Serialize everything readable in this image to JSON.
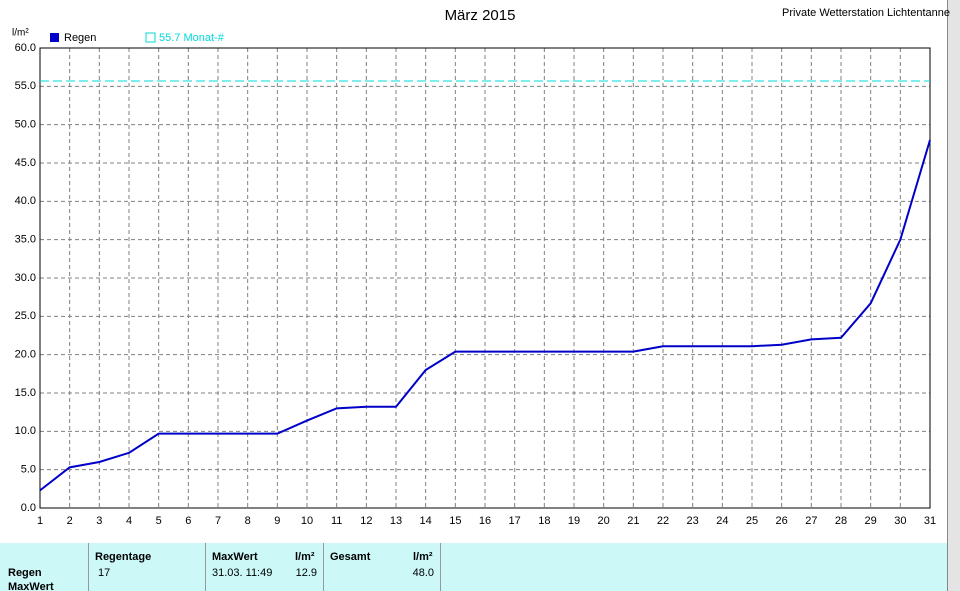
{
  "chart_data": {
    "type": "line",
    "title": "März 2015",
    "station": "Private Wetterstation Lichtentanne",
    "y_label": "l/m²",
    "x": [
      1,
      2,
      3,
      4,
      5,
      6,
      7,
      8,
      9,
      10,
      11,
      12,
      13,
      14,
      15,
      16,
      17,
      18,
      19,
      20,
      21,
      22,
      23,
      24,
      25,
      26,
      27,
      28,
      29,
      30,
      31
    ],
    "xlim": [
      1,
      31
    ],
    "xticks": [
      1,
      2,
      3,
      4,
      5,
      6,
      7,
      8,
      9,
      10,
      11,
      12,
      13,
      14,
      15,
      16,
      17,
      18,
      19,
      20,
      21,
      22,
      23,
      24,
      25,
      26,
      27,
      28,
      29,
      30,
      31
    ],
    "ylim": [
      0,
      60
    ],
    "yticks": [
      {
        "value": 0,
        "label": "0.0"
      },
      {
        "value": 5,
        "label": "5.0"
      },
      {
        "value": 10,
        "label": "10.0"
      },
      {
        "value": 15,
        "label": "15.0"
      },
      {
        "value": 20,
        "label": "20.0"
      },
      {
        "value": 25,
        "label": "25.0"
      },
      {
        "value": 30,
        "label": "30.0"
      },
      {
        "value": 35,
        "label": "35.0"
      },
      {
        "value": 40,
        "label": "40.0"
      },
      {
        "value": 45,
        "label": "45.0"
      },
      {
        "value": 50,
        "label": "50.0"
      },
      {
        "value": 55,
        "label": "55.0"
      },
      {
        "value": 60,
        "label": "60.0"
      }
    ],
    "grid": true,
    "series": [
      {
        "name": "Regen",
        "color": "#0000c8",
        "values": [
          2.3,
          5.3,
          6.0,
          7.2,
          9.7,
          9.7,
          9.7,
          9.7,
          9.7,
          11.4,
          13.0,
          13.2,
          13.2,
          18.0,
          20.4,
          20.4,
          20.4,
          20.4,
          20.4,
          20.4,
          20.4,
          21.1,
          21.1,
          21.1,
          21.1,
          21.3,
          22.0,
          22.2,
          26.7,
          35.0,
          48.0
        ]
      }
    ],
    "reference": {
      "value": 55.7,
      "label": "55.7 Monat-#",
      "color": "#00d8d8"
    }
  },
  "table": {
    "headers": [
      "Regentage",
      "MaxWert",
      "l/m²",
      "Gesamt",
      "l/m²"
    ],
    "row_labels": [
      "Regen",
      "MaxWert"
    ],
    "rows": [
      [
        "17",
        "31.03.  11:49",
        "12.9",
        "48.0"
      ]
    ]
  }
}
